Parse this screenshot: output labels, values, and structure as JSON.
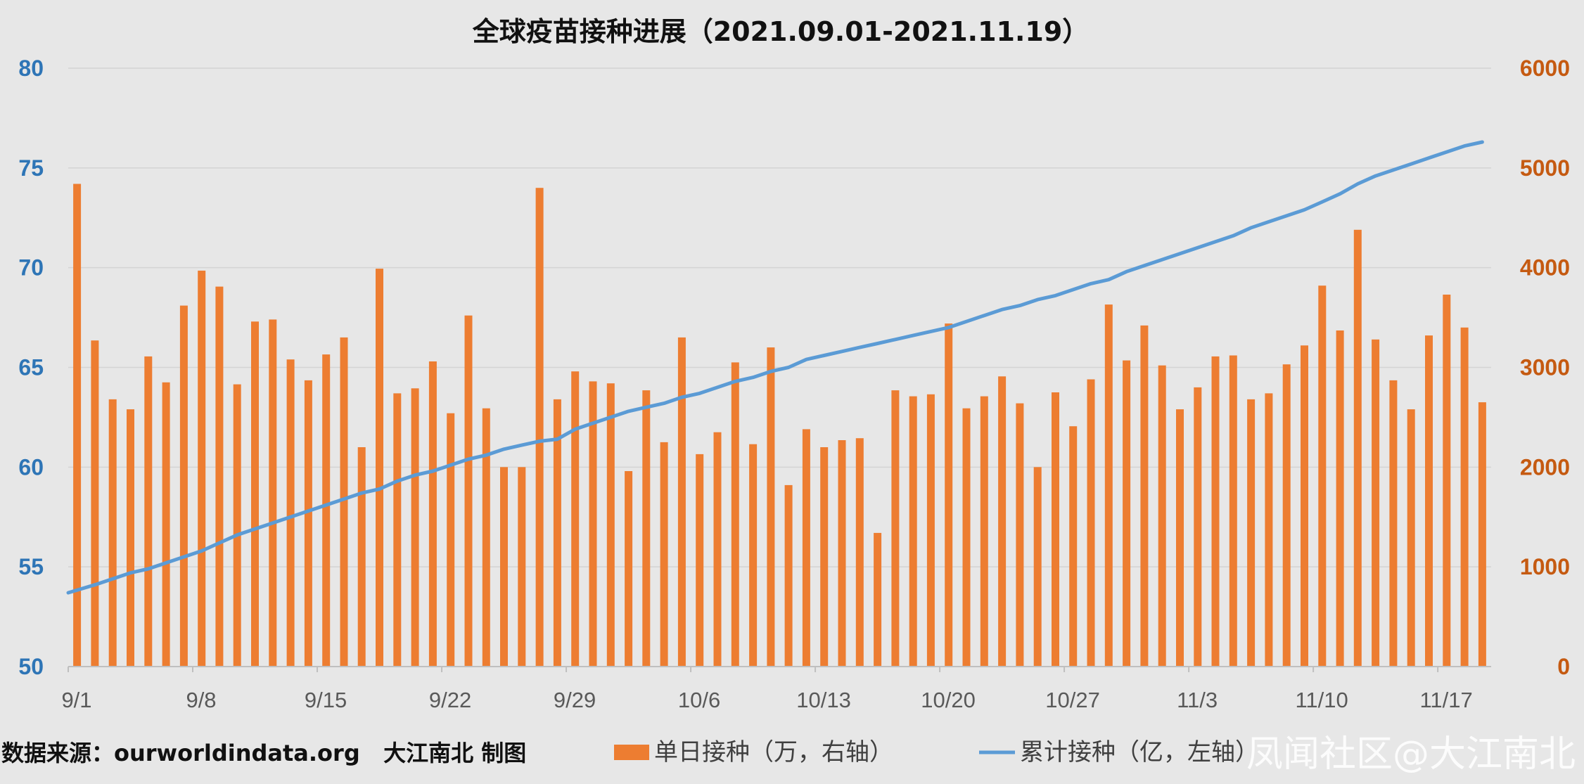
{
  "chart_data": {
    "type": "bar",
    "title": "全球疫苗接种进展（2021.09.01-2021.11.19）",
    "categories": [
      "9/1",
      "9/2",
      "9/3",
      "9/4",
      "9/5",
      "9/6",
      "9/7",
      "9/8",
      "9/9",
      "9/10",
      "9/11",
      "9/12",
      "9/13",
      "9/14",
      "9/15",
      "9/16",
      "9/17",
      "9/18",
      "9/19",
      "9/20",
      "9/21",
      "9/22",
      "9/23",
      "9/24",
      "9/25",
      "9/26",
      "9/27",
      "9/28",
      "9/29",
      "9/30",
      "10/1",
      "10/2",
      "10/3",
      "10/4",
      "10/5",
      "10/6",
      "10/7",
      "10/8",
      "10/9",
      "10/10",
      "10/11",
      "10/12",
      "10/13",
      "10/14",
      "10/15",
      "10/16",
      "10/17",
      "10/18",
      "10/19",
      "10/20",
      "10/21",
      "10/22",
      "10/23",
      "10/24",
      "10/25",
      "10/26",
      "10/27",
      "10/28",
      "10/29",
      "10/30",
      "10/31",
      "11/1",
      "11/2",
      "11/3",
      "11/4",
      "11/5",
      "11/6",
      "11/7",
      "11/8",
      "11/9",
      "11/10",
      "11/11",
      "11/12",
      "11/13",
      "11/14",
      "11/15",
      "11/16",
      "11/17",
      "11/18",
      "11/19"
    ],
    "x_tick_labels": [
      "9/1",
      "9/8",
      "9/15",
      "9/22",
      "9/29",
      "10/6",
      "10/13",
      "10/20",
      "10/27",
      "11/3",
      "11/10",
      "11/17"
    ],
    "series": [
      {
        "name": "单日接种（万，右轴）",
        "type": "bar",
        "axis": "right",
        "color": "#ed7d31",
        "values": [
          4840,
          3270,
          2680,
          2580,
          3110,
          2850,
          3620,
          3970,
          3810,
          2830,
          3460,
          3480,
          3080,
          2870,
          3130,
          3300,
          2200,
          3990,
          2740,
          2790,
          3060,
          2540,
          3520,
          2590,
          2000,
          2000,
          4800,
          2680,
          2960,
          2860,
          2840,
          1960,
          2770,
          2250,
          3300,
          2130,
          2350,
          3050,
          2230,
          3200,
          1820,
          2380,
          2200,
          2270,
          2290,
          1340,
          2770,
          2710,
          2730,
          3440,
          2590,
          2710,
          2910,
          2640,
          2000,
          2750,
          2410,
          2880,
          3630,
          3070,
          3420,
          3020,
          2580,
          2800,
          3110,
          3120,
          2680,
          2740,
          3030,
          3220,
          3820,
          3370,
          4380,
          3280,
          2870,
          2580,
          3320,
          3730,
          3400,
          2650
        ]
      },
      {
        "name": "累计接种（亿，左轴）",
        "type": "line",
        "axis": "left",
        "color": "#5b9bd5",
        "values": [
          53.7,
          54.1,
          54.4,
          54.7,
          54.9,
          55.2,
          55.5,
          55.8,
          56.2,
          56.6,
          56.9,
          57.2,
          57.5,
          57.8,
          58.1,
          58.4,
          58.7,
          58.9,
          59.3,
          59.6,
          59.8,
          60.1,
          60.4,
          60.6,
          60.9,
          61.1,
          61.3,
          61.4,
          61.9,
          62.2,
          62.5,
          62.8,
          63.0,
          63.2,
          63.5,
          63.7,
          64.0,
          64.3,
          64.5,
          64.8,
          65.0,
          65.4,
          65.6,
          65.8,
          66.0,
          66.2,
          66.4,
          66.6,
          66.8,
          67.0,
          67.3,
          67.6,
          67.9,
          68.1,
          68.4,
          68.6,
          68.9,
          69.2,
          69.4,
          69.8,
          70.1,
          70.4,
          70.7,
          71.0,
          71.3,
          71.6,
          72.0,
          72.3,
          72.6,
          72.9,
          73.3,
          73.7,
          74.2,
          74.6,
          74.9,
          75.2,
          75.5,
          75.8,
          76.1,
          76.3
        ]
      }
    ],
    "left_axis": {
      "ylim": [
        50,
        80
      ],
      "ticks": [
        "80",
        "75",
        "70",
        "65",
        "60",
        "55",
        "50"
      ],
      "color": "#2e75b6"
    },
    "right_axis": {
      "ylim": [
        0,
        6000
      ],
      "ticks": [
        "6000",
        "5000",
        "4000",
        "3000",
        "2000",
        "1000",
        "0"
      ],
      "color": "#c55a11"
    },
    "grid": true,
    "legend_position": "bottom"
  },
  "source_text": "数据来源：ourworldindata.org   大江南北 制图",
  "legend": {
    "bar_label": "单日接种（万，右轴）",
    "line_label": "累计接种（亿，左轴）"
  },
  "watermark": "凤闻社区@大江南北"
}
